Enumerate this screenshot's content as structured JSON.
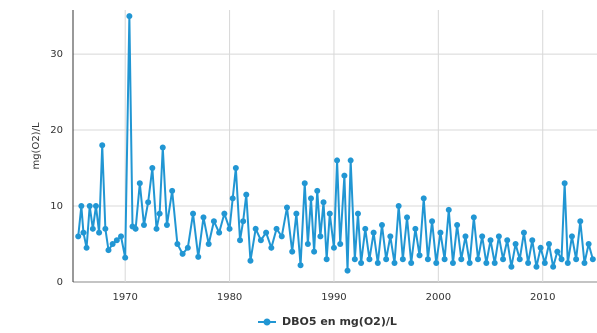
{
  "chart_data": {
    "type": "line",
    "y_label": "mg(O2)/L",
    "series": [
      {
        "name": "DBO5 en mg(O2)/L",
        "color": "#2196d3",
        "x": [
          1965.5,
          1965.8,
          1966.0,
          1966.3,
          1966.6,
          1966.9,
          1967.2,
          1967.5,
          1967.8,
          1968.1,
          1968.4,
          1968.8,
          1969.2,
          1969.6,
          1970.0,
          1970.4,
          1970.7,
          1971.0,
          1971.4,
          1971.8,
          1972.2,
          1972.6,
          1973.0,
          1973.3,
          1973.6,
          1974.0,
          1974.5,
          1975.0,
          1975.5,
          1976.0,
          1976.5,
          1977.0,
          1977.5,
          1978.0,
          1978.5,
          1979.0,
          1979.5,
          1980.0,
          1980.3,
          1980.6,
          1981.0,
          1981.3,
          1981.6,
          1982.0,
          1982.5,
          1983.0,
          1983.5,
          1984.0,
          1984.5,
          1985.0,
          1985.5,
          1986.0,
          1986.4,
          1986.8,
          1987.2,
          1987.5,
          1987.8,
          1988.1,
          1988.4,
          1988.7,
          1989.0,
          1989.3,
          1989.6,
          1990.0,
          1990.3,
          1990.6,
          1991.0,
          1991.3,
          1991.6,
          1992.0,
          1992.3,
          1992.6,
          1993.0,
          1993.4,
          1993.8,
          1994.2,
          1994.6,
          1995.0,
          1995.4,
          1995.8,
          1996.2,
          1996.6,
          1997.0,
          1997.4,
          1997.8,
          1998.2,
          1998.6,
          1999.0,
          1999.4,
          1999.8,
          2000.2,
          2000.6,
          2001.0,
          2001.4,
          2001.8,
          2002.2,
          2002.6,
          2003.0,
          2003.4,
          2003.8,
          2004.2,
          2004.6,
          2005.0,
          2005.4,
          2005.8,
          2006.2,
          2006.6,
          2007.0,
          2007.4,
          2007.8,
          2008.2,
          2008.6,
          2009.0,
          2009.4,
          2009.8,
          2010.2,
          2010.6,
          2011.0,
          2011.4,
          2011.8,
          2012.1,
          2012.4,
          2012.8,
          2013.2,
          2013.6,
          2014.0,
          2014.4,
          2014.8
        ],
        "values": [
          6,
          10,
          6.5,
          4.5,
          10,
          7,
          10,
          6.5,
          18,
          7,
          4.2,
          5,
          5.5,
          6,
          3.2,
          35,
          7.3,
          7,
          13,
          7.5,
          10.5,
          15,
          7,
          9,
          17.7,
          7.5,
          12,
          5,
          3.7,
          4.5,
          9,
          3.3,
          8.5,
          5,
          8,
          6.5,
          9,
          7,
          11,
          15,
          5.5,
          8,
          11.5,
          2.8,
          7,
          5.5,
          6.5,
          4.5,
          7,
          6,
          9.8,
          4,
          9,
          2.2,
          13,
          5,
          11,
          4,
          12,
          6,
          10.5,
          3,
          9,
          4.5,
          16,
          5,
          14,
          1.5,
          16,
          3,
          9,
          2.5,
          7,
          3,
          6.5,
          2.5,
          7.5,
          3,
          6,
          2.5,
          10,
          3,
          8.5,
          2.5,
          7,
          3.5,
          11,
          3,
          8,
          2.5,
          6.5,
          3,
          9.5,
          2.5,
          7.5,
          3,
          6,
          2.5,
          8.5,
          3,
          6,
          2.5,
          5.5,
          2.5,
          6,
          3,
          5.5,
          2,
          5,
          3,
          6.5,
          2.5,
          5.5,
          2,
          4.5,
          2.5,
          5,
          2,
          4,
          3,
          13,
          2.5,
          6,
          3,
          8,
          2.5,
          5,
          3
        ]
      }
    ],
    "xlim": [
      1965,
      2015.2
    ],
    "xticks": [
      1970,
      1980,
      1990,
      2000,
      2010
    ],
    "ylim": [
      0,
      35.8
    ],
    "yticks": [
      0,
      10,
      20,
      30
    ],
    "grid": true,
    "legend": "bottom"
  }
}
